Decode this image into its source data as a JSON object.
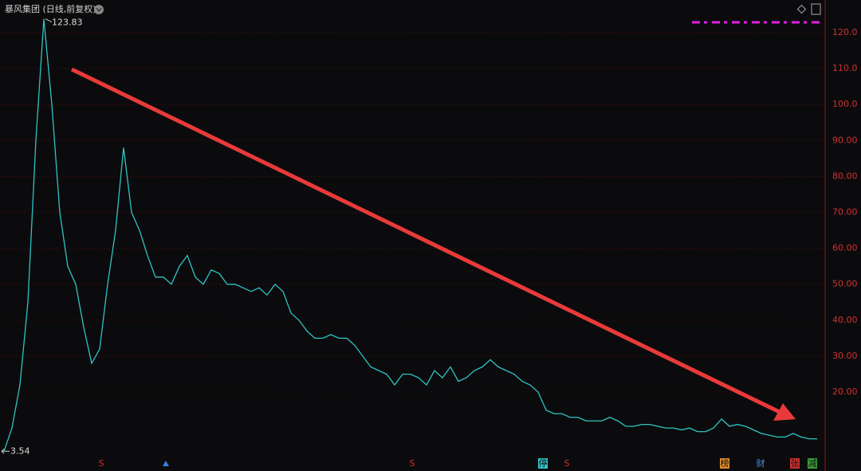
{
  "chart_data": {
    "type": "line",
    "title": "暴风集团 (日线,前复权)",
    "series": [
      {
        "color": "#2fc4c4",
        "values": [
          3.54,
          10,
          22,
          45,
          90,
          123.83,
          100,
          70,
          55,
          50,
          38,
          28,
          32,
          50,
          65,
          88,
          70,
          65,
          58,
          52,
          52,
          50,
          55,
          58,
          52,
          50,
          54,
          53,
          50,
          50,
          49,
          48,
          49,
          47,
          50,
          48,
          42,
          40,
          37,
          35,
          35,
          36,
          35,
          35,
          33,
          30,
          27,
          26,
          25,
          22,
          25,
          25,
          24,
          22,
          26,
          24,
          27,
          23,
          24,
          26,
          27,
          29,
          27,
          26,
          25,
          23,
          22,
          20,
          15,
          14,
          14,
          13,
          13,
          12,
          12,
          12,
          13,
          12,
          10.5,
          10.5,
          11,
          11,
          10.5,
          10,
          10,
          9.5,
          10,
          9,
          9,
          10,
          12.5,
          10.5,
          11,
          10.5,
          9.5,
          8.5,
          8,
          7.5,
          7.5,
          8.5,
          7.5,
          7,
          7
        ]
      }
    ],
    "ylim": [
      1.6,
      125.1
    ],
    "yticks": [
      {
        "value": 20,
        "label": "20.00"
      },
      {
        "value": 30,
        "label": "30.00"
      },
      {
        "value": 40,
        "label": "40.00"
      },
      {
        "value": 50,
        "label": "50.00"
      },
      {
        "value": 60,
        "label": "60.00"
      },
      {
        "value": 70,
        "label": "70.00"
      },
      {
        "value": 80,
        "label": "80.00"
      },
      {
        "value": 90,
        "label": "90.00"
      },
      {
        "value": 100,
        "label": "100.0"
      },
      {
        "value": 110,
        "label": "110.0"
      },
      {
        "value": 120,
        "label": "120.0"
      }
    ],
    "grid": true,
    "annotations": [
      "123.83",
      "3.54"
    ],
    "event_markers": [
      "S",
      "S",
      "停",
      "S",
      "榜",
      "财",
      "张",
      "减"
    ]
  }
}
